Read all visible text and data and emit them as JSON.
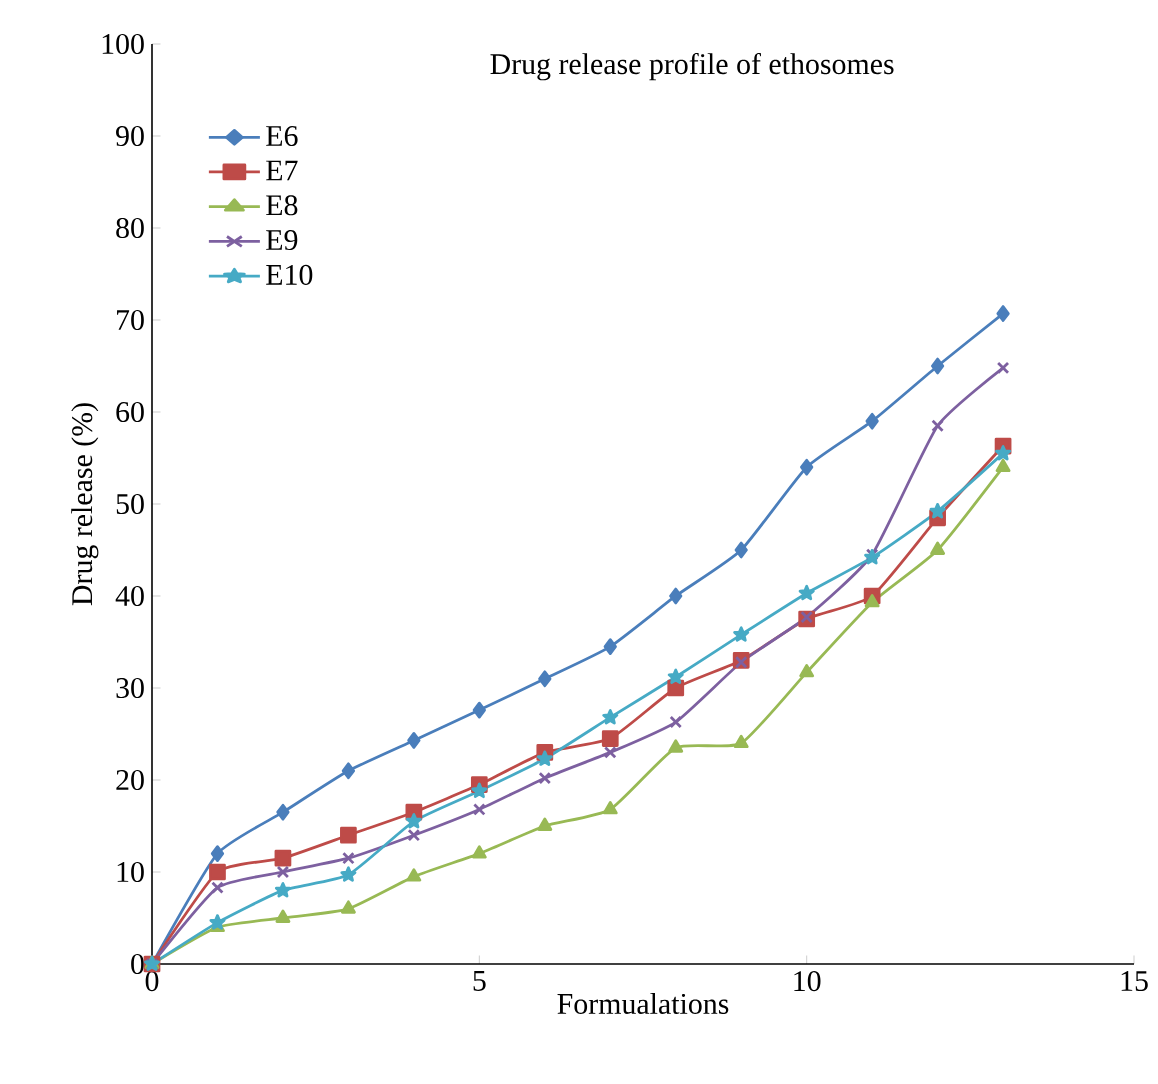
{
  "chart_data": {
    "type": "line",
    "title": "Drug release profile of ethosomes",
    "xlabel": "Formualations",
    "ylabel": "Drug release (%)",
    "x": [
      0,
      1,
      2,
      3,
      4,
      5,
      6,
      7,
      8,
      9,
      10,
      11,
      12,
      13
    ],
    "series": [
      {
        "name": "E6",
        "color": "#4a7ebb",
        "marker": "diamond",
        "values": [
          0,
          12,
          16.5,
          21,
          24.3,
          27.6,
          31,
          34.5,
          40,
          45,
          54,
          59,
          65,
          70.7
        ]
      },
      {
        "name": "E7",
        "color": "#be4b48",
        "marker": "square",
        "values": [
          0,
          10,
          11.5,
          14,
          16.5,
          19.5,
          23,
          24.5,
          30,
          33,
          37.5,
          40,
          48.5,
          56.3
        ]
      },
      {
        "name": "E8",
        "color": "#98b954",
        "marker": "triangle",
        "values": [
          0,
          4,
          5,
          6,
          9.5,
          12,
          15,
          16.8,
          23.5,
          24,
          31.7,
          39.3,
          45,
          54
        ]
      },
      {
        "name": "E9",
        "color": "#7d60a0",
        "marker": "cross",
        "values": [
          0,
          8.3,
          10,
          11.5,
          14,
          16.8,
          20.2,
          23,
          26.3,
          32.8,
          37.7,
          44.5,
          58.5,
          64.8
        ]
      },
      {
        "name": "E10",
        "color": "#46aac5",
        "marker": "star",
        "values": [
          0,
          4.5,
          8,
          9.7,
          15.5,
          18.8,
          22.3,
          26.8,
          31.2,
          35.8,
          40.3,
          44.2,
          49.2,
          55.5
        ]
      }
    ],
    "xlim": [
      0,
      15
    ],
    "xticks": [
      0,
      5,
      10,
      15
    ],
    "ylim": [
      0,
      100
    ],
    "yticks": [
      0,
      10,
      20,
      30,
      40,
      50,
      60,
      70,
      80,
      90,
      100
    ],
    "grid": false,
    "legend": "top left",
    "line_style": "solid"
  }
}
